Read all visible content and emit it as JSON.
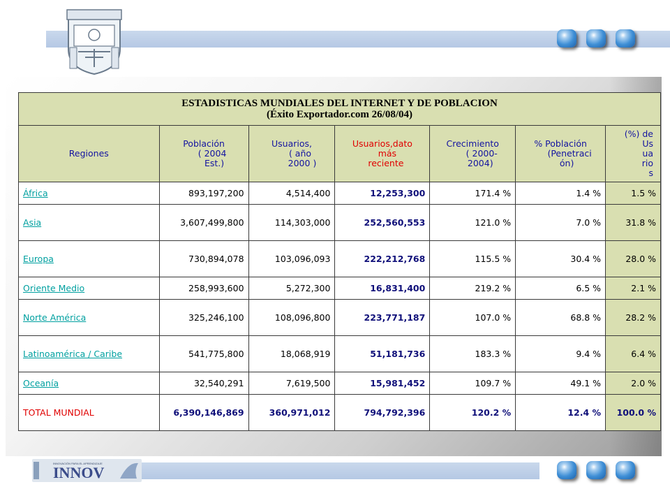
{
  "header": {
    "crest_icon": "university-crest-icon",
    "accent_color": "#3f8fd6"
  },
  "table": {
    "title_line1": "ESTADISTICAS MUNDIALES DEL INTERNET Y DE POBLACION",
    "title_line2": "(Éxito Exportador.com  26/08/04)",
    "headers": {
      "regions": "Regiones",
      "population": [
        "Población",
        "( 2004",
        "Est.)"
      ],
      "users_2000": [
        "Usuarios,",
        "( año",
        "2000 )"
      ],
      "users_recent": [
        "Usuarios,dato",
        "más",
        "reciente"
      ],
      "growth": [
        "Crecimiento",
        "( 2000-",
        "2004)"
      ],
      "penetration": [
        "% Población",
        "(Penetraci",
        "ón)"
      ],
      "user_share": [
        "(%) de",
        "Us",
        "ua",
        "rio",
        "s"
      ]
    },
    "rows": [
      {
        "region": "África",
        "population": "893,197,200",
        "users_2000": "4,514,400",
        "users_recent": "12,253,300",
        "growth": "171.4 %",
        "penetration": "1.4 %",
        "share": "1.5 %"
      },
      {
        "region": "Asia",
        "population": "3,607,499,800",
        "users_2000": "114,303,000",
        "users_recent": "252,560,553",
        "growth": "121.0 %",
        "penetration": "7.0 %",
        "share": "31.8 %"
      },
      {
        "region": "Europa",
        "population": "730,894,078",
        "users_2000": "103,096,093",
        "users_recent": "222,212,768",
        "growth": "115.5 %",
        "penetration": "30.4 %",
        "share": "28.0 %"
      },
      {
        "region": "Oriente Medio",
        "population": "258,993,600",
        "users_2000": "5,272,300",
        "users_recent": "16,831,400",
        "growth": "219.2 %",
        "penetration": "6.5 %",
        "share": "2.1 %"
      },
      {
        "region": "Norte América",
        "population": "325,246,100",
        "users_2000": "108,096,800",
        "users_recent": "223,771,187",
        "growth": "107.0 %",
        "penetration": "68.8 %",
        "share": "28.2 %"
      },
      {
        "region": "Latinoamérica / Caribe",
        "population": "541,775,800",
        "users_2000": "18,068,919",
        "users_recent": "51,181,736",
        "growth": "183.3 %",
        "penetration": "9.4 %",
        "share": "6.4 %"
      },
      {
        "region": "Oceanía",
        "population": "32,540,291",
        "users_2000": "7,619,500",
        "users_recent": "15,981,452",
        "growth": "109.7 %",
        "penetration": "49.1 %",
        "share": "2.0 %"
      }
    ],
    "total": {
      "region": "TOTAL MUNDIAL",
      "population": "6,390,146,869",
      "users_2000": "360,971,012",
      "users_recent": "794,792,396",
      "growth": "120.2 %",
      "penetration": "12.4 %",
      "share": "100.0 %"
    }
  },
  "footer": {
    "logo_text": "INNOV",
    "logo_icon": "innova-logo-icon"
  }
}
